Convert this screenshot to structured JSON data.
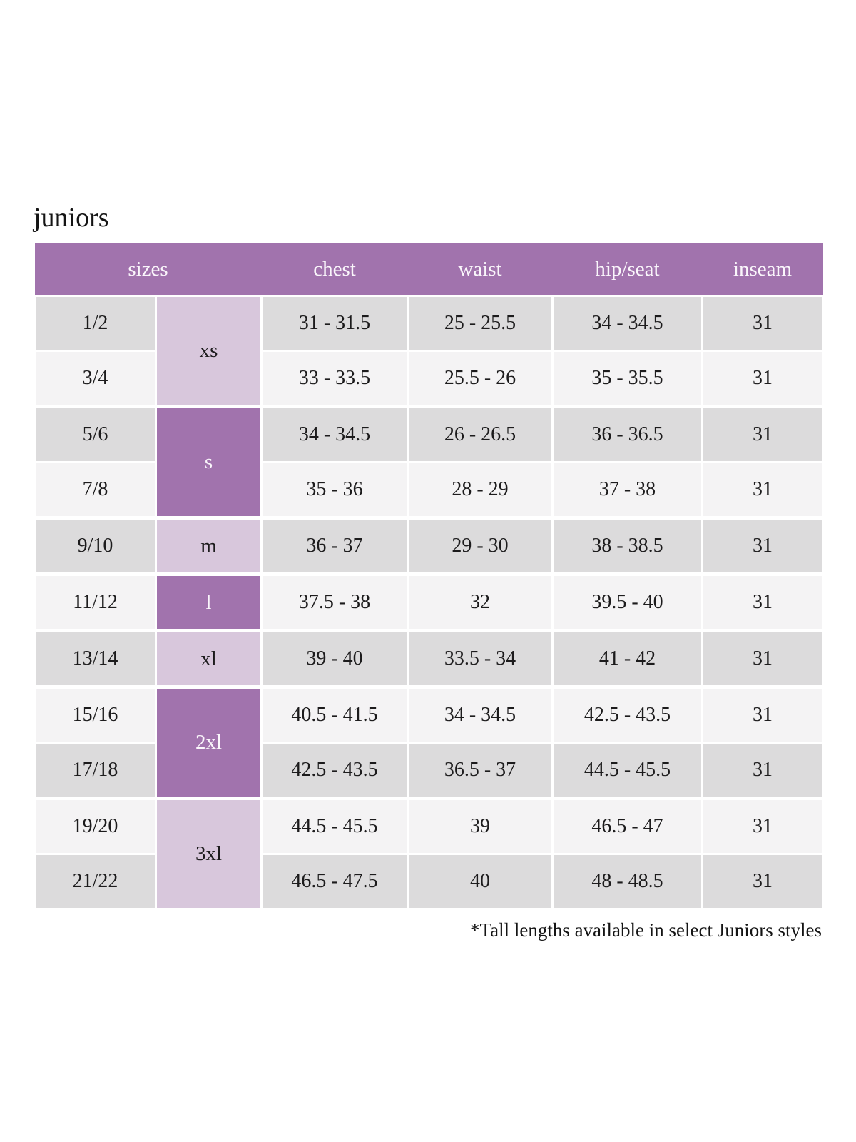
{
  "title": "juniors",
  "footnote": "*Tall lengths available in select Juniors styles",
  "colors": {
    "header_bg": "#a173ad",
    "group_light": "#d8c7dc",
    "group_dark": "#a173ad",
    "row_dark": "#dcdbdc",
    "row_light": "#f4f3f4",
    "header_text": "#faf6fb",
    "body_text": "#1c1b1c"
  },
  "table": {
    "headers": [
      "sizes",
      "chest",
      "waist",
      "hip/seat",
      "inseam"
    ],
    "size_groups": [
      {
        "label": "xs",
        "span": 2,
        "shade": "light"
      },
      {
        "label": "s",
        "span": 2,
        "shade": "dark"
      },
      {
        "label": "m",
        "span": 1,
        "shade": "light"
      },
      {
        "label": "l",
        "span": 1,
        "shade": "dark"
      },
      {
        "label": "xl",
        "span": 1,
        "shade": "light"
      },
      {
        "label": "2xl",
        "span": 2,
        "shade": "dark"
      },
      {
        "label": "3xl",
        "span": 2,
        "shade": "light"
      }
    ],
    "rows": [
      {
        "size": "1/2",
        "chest": "31 - 31.5",
        "waist": "25 - 25.5",
        "hip_seat": "34 - 34.5",
        "inseam": "31"
      },
      {
        "size": "3/4",
        "chest": "33 - 33.5",
        "waist": "25.5 - 26",
        "hip_seat": "35 - 35.5",
        "inseam": "31"
      },
      {
        "size": "5/6",
        "chest": "34 - 34.5",
        "waist": "26 - 26.5",
        "hip_seat": "36 - 36.5",
        "inseam": "31"
      },
      {
        "size": "7/8",
        "chest": "35 - 36",
        "waist": "28 - 29",
        "hip_seat": "37 - 38",
        "inseam": "31"
      },
      {
        "size": "9/10",
        "chest": "36 - 37",
        "waist": "29 - 30",
        "hip_seat": "38 - 38.5",
        "inseam": "31"
      },
      {
        "size": "11/12",
        "chest": "37.5 - 38",
        "waist": "32",
        "hip_seat": "39.5 - 40",
        "inseam": "31"
      },
      {
        "size": "13/14",
        "chest": "39 - 40",
        "waist": "33.5 - 34",
        "hip_seat": "41 - 42",
        "inseam": "31"
      },
      {
        "size": "15/16",
        "chest": "40.5 - 41.5",
        "waist": "34 - 34.5",
        "hip_seat": "42.5 - 43.5",
        "inseam": "31"
      },
      {
        "size": "17/18",
        "chest": "42.5 - 43.5",
        "waist": "36.5 - 37",
        "hip_seat": "44.5 - 45.5",
        "inseam": "31"
      },
      {
        "size": "19/20",
        "chest": "44.5 - 45.5",
        "waist": "39",
        "hip_seat": "46.5 - 47",
        "inseam": "31"
      },
      {
        "size": "21/22",
        "chest": "46.5 - 47.5",
        "waist": "40",
        "hip_seat": "48 - 48.5",
        "inseam": "31"
      }
    ]
  }
}
